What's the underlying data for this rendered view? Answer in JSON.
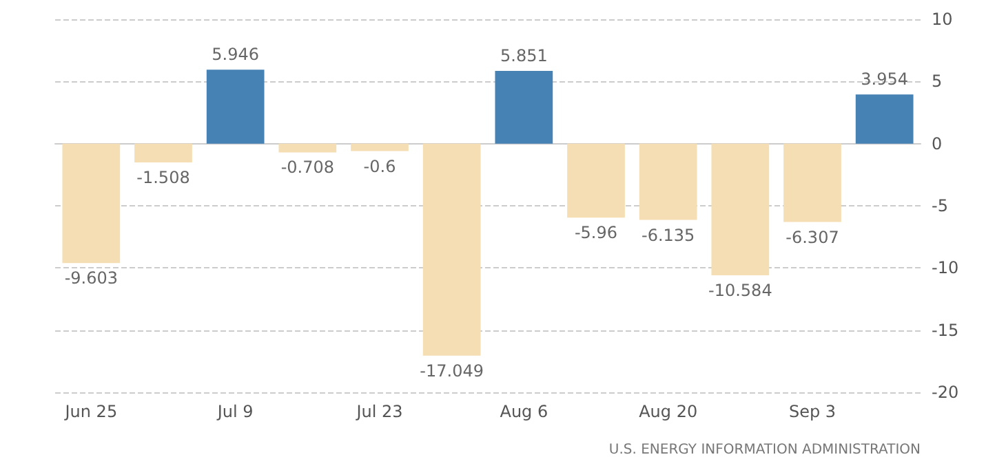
{
  "chart_data": {
    "type": "bar",
    "categories": [
      "Jun 25",
      null,
      "Jul 9",
      null,
      "Jul 23",
      null,
      "Aug 6",
      null,
      "Aug 20",
      null,
      "Sep 3",
      null
    ],
    "values": [
      -9.603,
      -1.508,
      5.946,
      -0.708,
      -0.6,
      -17.049,
      5.851,
      -5.96,
      -6.135,
      -10.584,
      -6.307,
      3.954
    ],
    "colors": [
      "#f5deb3",
      "#f5deb3",
      "#4682b4",
      "#f5deb3",
      "#f5deb3",
      "#f5deb3",
      "#4682b4",
      "#f5deb3",
      "#f5deb3",
      "#f5deb3",
      "#f5deb3",
      "#4682b4"
    ],
    "ylim": [
      -20,
      10
    ],
    "yticks": [
      -20,
      -15,
      -10,
      -5,
      0,
      5,
      10
    ],
    "grid": "y",
    "data_labels": true,
    "annotations": [
      "U.S. ENERGY INFORMATION ADMINISTRATION"
    ]
  }
}
